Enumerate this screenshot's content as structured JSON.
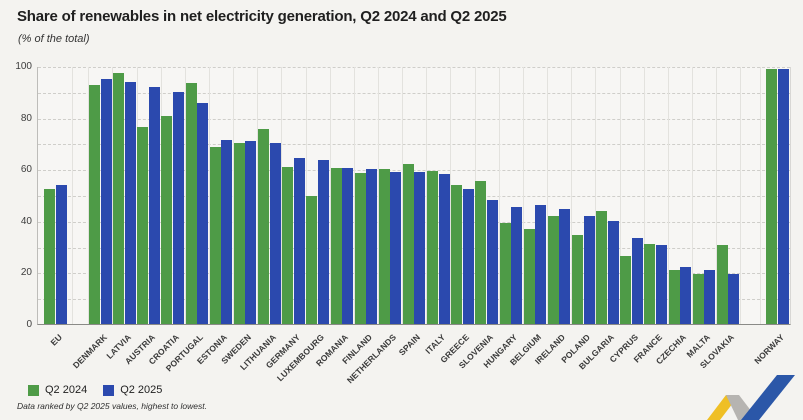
{
  "header": {
    "title": "Share of renewables in net electricity generation, Q2 2024 and Q2 2025",
    "subtitle": "(% of the total)"
  },
  "footnote": "Data ranked by Q2 2025 values, highest to lowest.",
  "chart_data": {
    "type": "bar",
    "title": "Share of renewables in net electricity generation, Q2 2024 and Q2 2025",
    "ylabel": "% of the total",
    "ylim": [
      0,
      100
    ],
    "y_ticks": [
      0,
      20,
      40,
      60,
      80,
      100
    ],
    "gridline_step": 10,
    "grid": "on",
    "legend_position": "bottom-left",
    "categories": [
      "EU",
      "DENMARK",
      "LATVIA",
      "AUSTRIA",
      "CROATIA",
      "PORTUGAL",
      "ESTONIA",
      "SWEDEN",
      "LITHUANIA",
      "GERMANY",
      "LUXEMBOURG",
      "ROMANIA",
      "FINLAND",
      "NETHERLANDS",
      "SPAIN",
      "ITALY",
      "GREECE",
      "SLOVENIA",
      "HUNGARY",
      "BELGIUM",
      "IRELAND",
      "POLAND",
      "BULGARIA",
      "CYPRUS",
      "FRANCE",
      "CZECHIA",
      "MALTA",
      "SLOVAKIA",
      "NORWAY"
    ],
    "series": [
      {
        "name": "Q2 2024",
        "color": "#4e9b47",
        "values": [
          52.5,
          92.5,
          97.5,
          76.5,
          80.5,
          93.5,
          68.5,
          70,
          75.5,
          61,
          49.5,
          60.5,
          58.5,
          60,
          62,
          59.5,
          54,
          55.5,
          39,
          37,
          42,
          34.5,
          44,
          26.5,
          31,
          21,
          19.5,
          30.5,
          99
        ]
      },
      {
        "name": "Q2 2025",
        "color": "#2b49ae",
        "values": [
          54,
          95,
          94,
          92,
          90,
          85.5,
          71.5,
          71,
          70,
          64.5,
          63.5,
          60.5,
          60,
          59,
          59,
          58,
          52.5,
          48,
          45.5,
          46,
          44.5,
          42,
          40,
          33.5,
          30.5,
          22,
          21,
          19.5,
          99
        ]
      }
    ],
    "separators_after_categories": [
      "EU",
      "SLOVAKIA"
    ]
  },
  "logo": {
    "name": "statistics-zigzag-logo",
    "colors": {
      "yellow": "#efbf25",
      "gray": "#b6b4b1",
      "blue": "#2b57a8"
    }
  }
}
